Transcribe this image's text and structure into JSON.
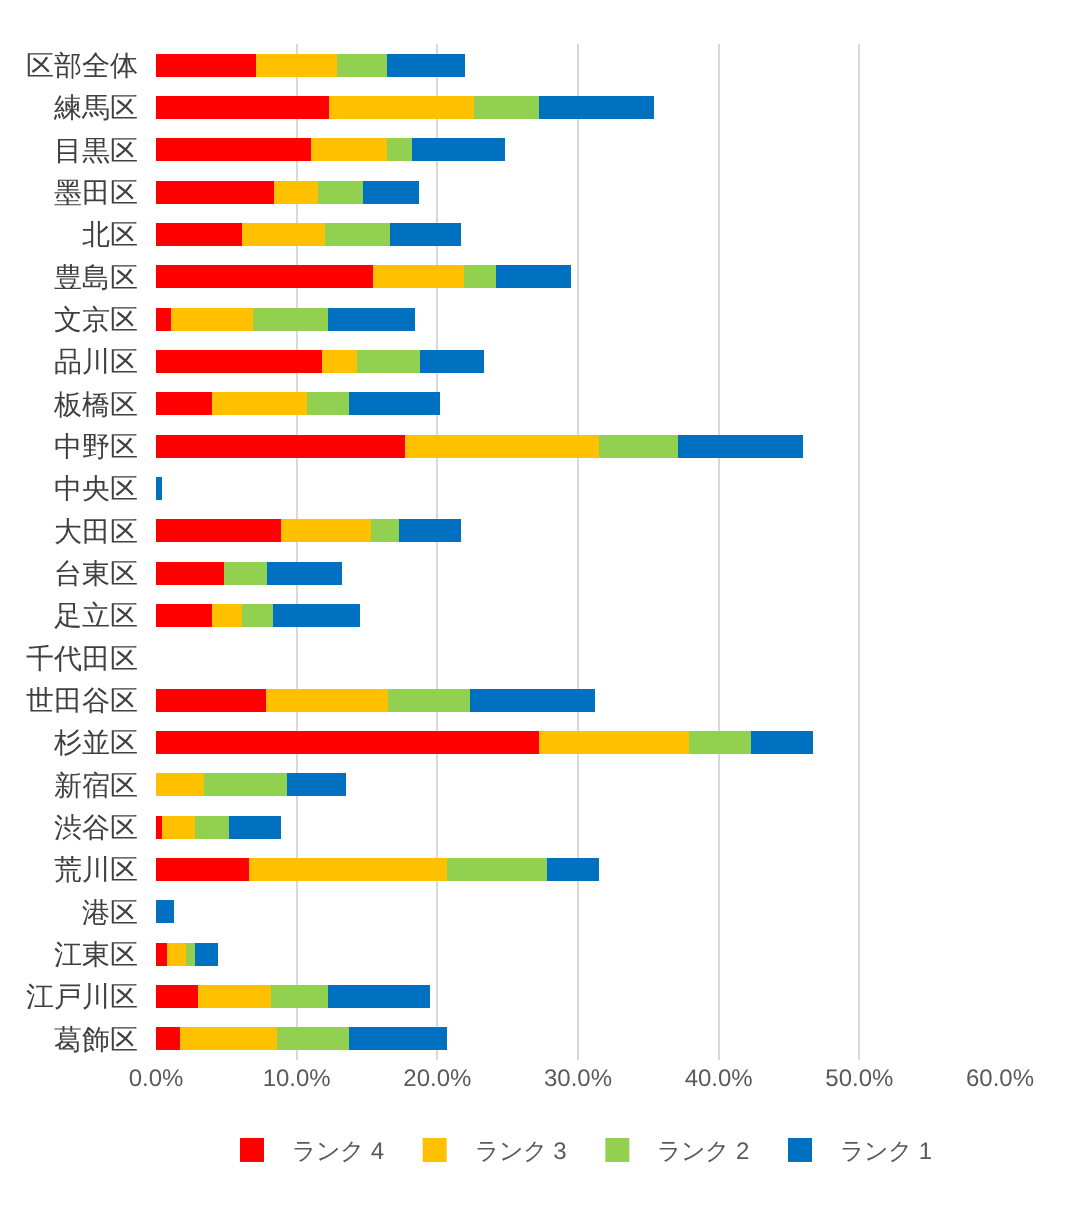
{
  "chart_data": {
    "type": "bar",
    "orientation": "horizontal",
    "stacked": true,
    "categories": [
      "区部全体",
      "練馬区",
      "目黒区",
      "墨田区",
      "北区",
      "豊島区",
      "文京区",
      "品川区",
      "板橋区",
      "中野区",
      "中央区",
      "大田区",
      "台東区",
      "足立区",
      "千代田区",
      "世田谷区",
      "杉並区",
      "新宿区",
      "渋谷区",
      "荒川区",
      "港区",
      "江東区",
      "江戸川区",
      "葛飾区"
    ],
    "series": [
      {
        "name": "ランク 4",
        "color": "#ff0000",
        "values": [
          7.1,
          12.3,
          11.0,
          8.4,
          6.1,
          15.4,
          1.1,
          11.8,
          4.0,
          17.7,
          0,
          8.9,
          4.8,
          4.0,
          0,
          7.8,
          27.2,
          0,
          0.4,
          6.6,
          0,
          0.8,
          3.0,
          1.7
        ]
      },
      {
        "name": "ランク 3",
        "color": "#ffc000",
        "values": [
          5.8,
          10.3,
          5.4,
          3.1,
          5.9,
          6.5,
          5.8,
          2.5,
          6.7,
          13.8,
          0,
          6.4,
          0,
          2.1,
          0,
          8.7,
          10.7,
          3.4,
          2.4,
          14.1,
          0,
          1.3,
          5.2,
          6.9
        ]
      },
      {
        "name": "ランク 2",
        "color": "#92d050",
        "values": [
          3.5,
          4.6,
          1.8,
          3.2,
          4.6,
          2.3,
          5.3,
          4.5,
          3.0,
          5.6,
          0,
          2.0,
          3.1,
          2.2,
          0,
          5.8,
          4.4,
          5.9,
          2.4,
          7.1,
          0,
          0.7,
          4.0,
          5.1
        ]
      },
      {
        "name": "ランク 1",
        "color": "#0070c0",
        "values": [
          5.6,
          8.2,
          6.6,
          4.0,
          5.1,
          5.3,
          6.2,
          4.5,
          6.5,
          8.9,
          0.4,
          4.4,
          5.3,
          6.2,
          0,
          8.9,
          4.4,
          4.2,
          3.7,
          3.7,
          1.3,
          1.6,
          7.3,
          7.0
        ]
      }
    ],
    "xlim": [
      0,
      60
    ],
    "xticks": [
      {
        "value": 0,
        "label": "0.0%"
      },
      {
        "value": 10,
        "label": "10.0%"
      },
      {
        "value": 20,
        "label": "20.0%"
      },
      {
        "value": 30,
        "label": "30.0%"
      },
      {
        "value": 40,
        "label": "40.0%"
      },
      {
        "value": 50,
        "label": "50.0%"
      },
      {
        "value": 60,
        "label": "60.0%"
      }
    ],
    "grid": "x",
    "legend": "bottom"
  }
}
